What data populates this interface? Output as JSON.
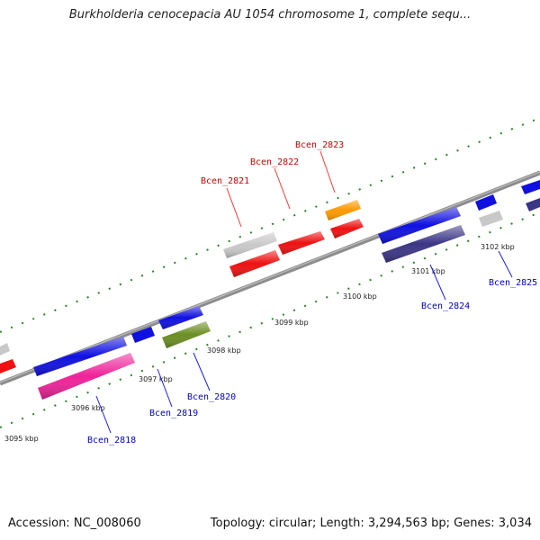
{
  "title": "Burkholderia cenocepacia AU 1054 chromosome 1, complete sequ...",
  "footer": {
    "accession": "Accession: NC_008060",
    "summary": "Topology: circular; Length: 3,294,563 bp; Genes: 3,034"
  },
  "ticks": [
    "3095 kbp",
    "3096 kbp",
    "3097 kbp",
    "3098 kbp",
    "3099 kbp",
    "3100 kbp",
    "3101 kbp",
    "3102 kbp"
  ],
  "labels": {
    "bcen_2818": "Bcen_2818",
    "bcen_2819": "Bcen_2819",
    "bcen_2820": "Bcen_2820",
    "bcen_2821": "Bcen_2821",
    "bcen_2822": "Bcen_2822",
    "bcen_2823": "Bcen_2823",
    "bcen_2824": "Bcen_2824",
    "bcen_2825": "Bcen_2825"
  },
  "colors": {
    "blue_gene": "#1010e0",
    "red_gene": "#ee1111",
    "grey_gene": "#c8c8c8",
    "orange_gene": "#ff9900",
    "magenta_gene": "#ee2299",
    "olive_gene": "#6b8e23",
    "navy_gene": "#3b3585",
    "backbone": "#8c8c8c",
    "tick_green": "#228822",
    "label_red": "#cc0000",
    "label_blue": "#0000cc"
  }
}
